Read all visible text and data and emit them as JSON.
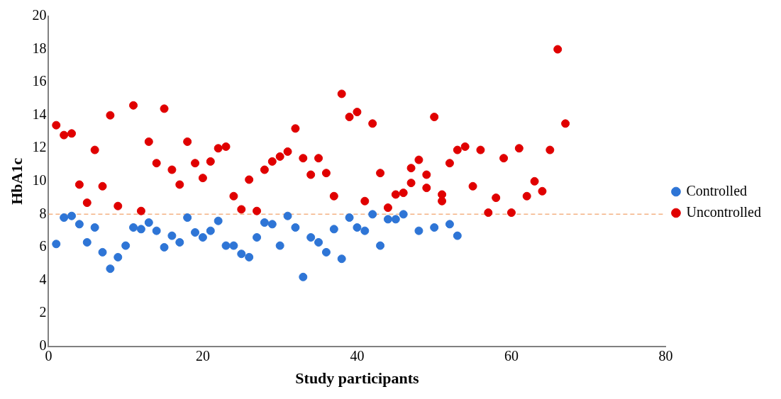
{
  "chart_data": {
    "type": "scatter",
    "xlabel": "Study participants",
    "ylabel": "HbA1c",
    "xlim": [
      0,
      80
    ],
    "xticks": [
      0,
      20,
      40,
      60,
      80
    ],
    "ylim": [
      0,
      20
    ],
    "yticks": [
      0,
      2,
      4,
      6,
      8,
      10,
      12,
      14,
      16,
      18,
      20
    ],
    "grid": false,
    "legend": "right",
    "marker": "circle",
    "series": [
      {
        "name": "Controlled",
        "color": "#2e75d6",
        "x": [
          1,
          2,
          3,
          4,
          5,
          6,
          7,
          8,
          9,
          10,
          11,
          12,
          13,
          14,
          15,
          16,
          17,
          18,
          19,
          20,
          21,
          22,
          23,
          24,
          25,
          26,
          27,
          28,
          29,
          30,
          31,
          32,
          33,
          34,
          35,
          36,
          37,
          38,
          39,
          40,
          41,
          42,
          43,
          44,
          45,
          46,
          48,
          50,
          52,
          53
        ],
        "values": [
          6.2,
          7.8,
          7.9,
          7.4,
          6.3,
          7.2,
          5.7,
          4.7,
          5.4,
          6.1,
          7.2,
          7.1,
          7.5,
          7.0,
          6.0,
          6.7,
          6.3,
          7.8,
          6.9,
          6.6,
          7.0,
          7.6,
          6.1,
          6.1,
          5.6,
          5.4,
          6.6,
          7.5,
          7.4,
          6.1,
          7.9,
          7.2,
          4.2,
          6.6,
          6.3,
          5.7,
          7.1,
          5.3,
          7.8,
          7.2,
          7.0,
          8.0,
          6.1,
          7.7,
          7.7,
          8.0,
          7.0,
          7.2,
          7.4,
          6.7
        ]
      },
      {
        "name": "Uncontrolled",
        "color": "#e00000",
        "x": [
          1,
          2,
          3,
          4,
          5,
          6,
          7,
          8,
          9,
          11,
          12,
          13,
          14,
          15,
          16,
          17,
          18,
          19,
          20,
          21,
          22,
          23,
          24,
          25,
          26,
          27,
          28,
          29,
          30,
          31,
          32,
          33,
          34,
          35,
          36,
          37,
          38,
          39,
          40,
          41,
          42,
          43,
          44,
          45,
          46,
          47,
          47,
          48,
          49,
          49,
          50,
          51,
          51,
          52,
          53,
          54,
          55,
          56,
          57,
          58,
          59,
          60,
          61,
          62,
          63,
          64,
          65,
          66,
          67
        ],
        "values": [
          13.4,
          12.8,
          12.9,
          9.8,
          8.7,
          11.9,
          9.7,
          14.0,
          8.5,
          14.6,
          8.2,
          12.4,
          11.1,
          14.4,
          10.7,
          9.8,
          12.4,
          11.1,
          10.2,
          11.2,
          12.0,
          12.1,
          9.1,
          8.3,
          10.1,
          8.2,
          10.7,
          11.2,
          11.5,
          11.8,
          13.2,
          11.4,
          10.4,
          11.4,
          10.5,
          9.1,
          15.3,
          13.9,
          14.2,
          8.8,
          13.5,
          10.5,
          8.4,
          9.2,
          9.3,
          9.9,
          10.8,
          11.3,
          10.4,
          9.6,
          13.9,
          9.2,
          8.8,
          11.1,
          11.9,
          12.1,
          9.7,
          11.9,
          8.1,
          9.0,
          11.4,
          8.1,
          12.0,
          9.1,
          10.0,
          9.4,
          11.9,
          18.0,
          13.5
        ]
      }
    ],
    "ref_lines": [
      {
        "axis": "y",
        "value": 8,
        "color": "#f4b183",
        "line_style": "dashed"
      }
    ]
  }
}
